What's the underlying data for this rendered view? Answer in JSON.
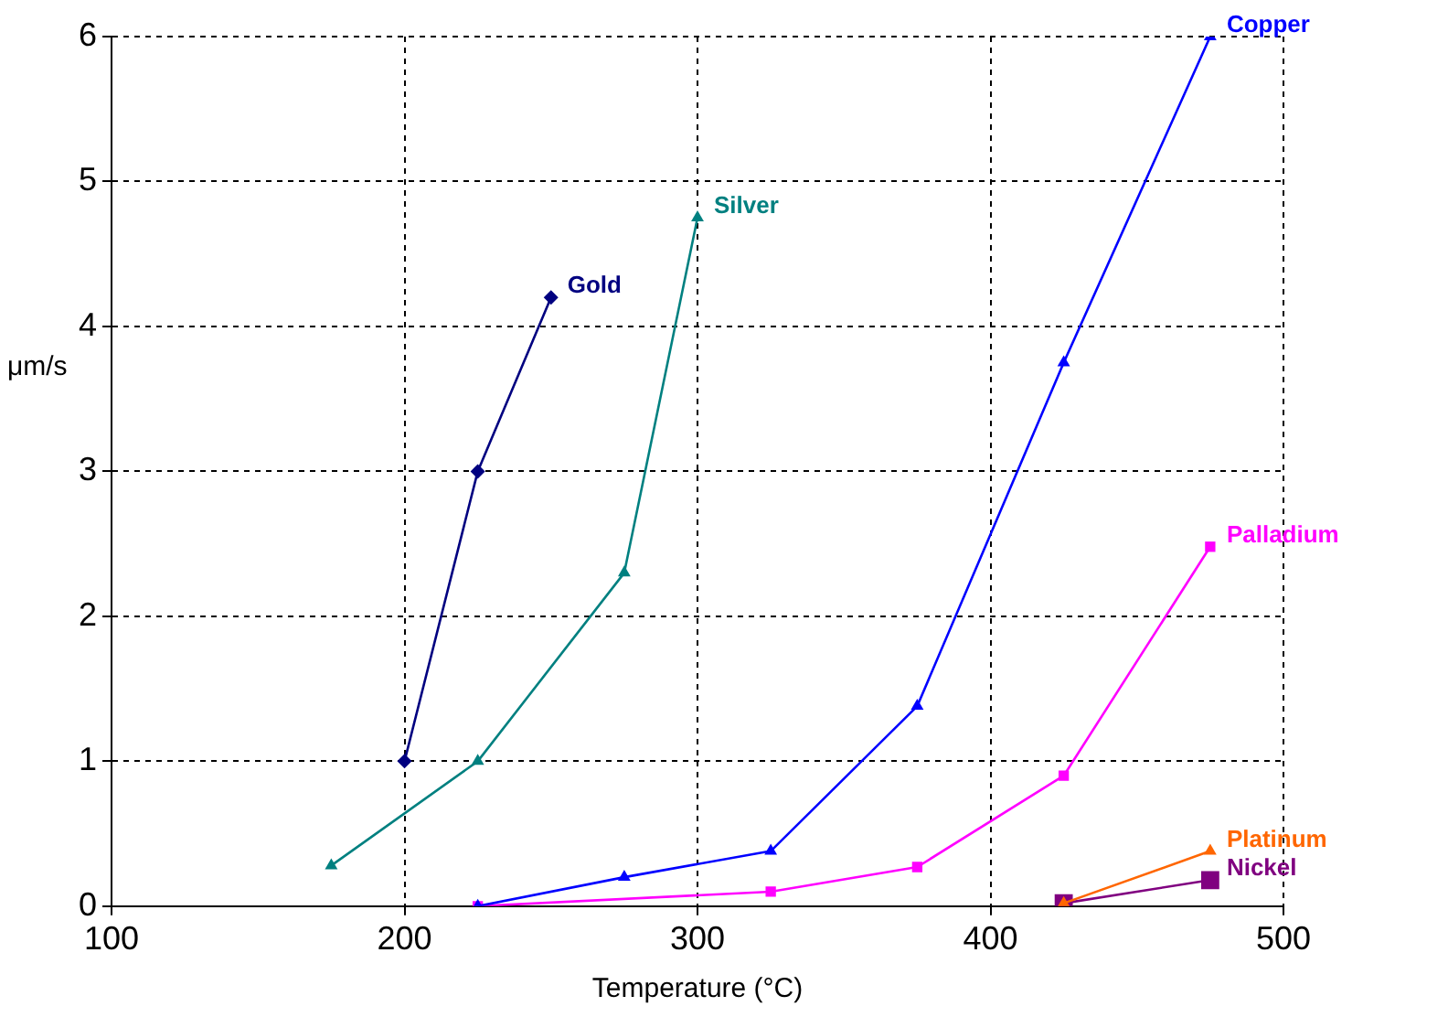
{
  "chart_data": {
    "type": "line",
    "xlabel": "Temperature (°C)",
    "ylabel": "μm/s",
    "xlim": [
      100,
      500
    ],
    "xticks": [
      100,
      200,
      300,
      400,
      500
    ],
    "ylim": [
      0,
      6
    ],
    "yticks": [
      0,
      1,
      2,
      3,
      4,
      5,
      6
    ],
    "grid": true,
    "legend": false,
    "series": [
      {
        "name": "Gold",
        "color": "#000080",
        "marker": "diamond",
        "x": [
          200,
          225,
          250
        ],
        "values": [
          1.0,
          3.0,
          4.2
        ]
      },
      {
        "name": "Silver",
        "color": "#008080",
        "marker": "triangle",
        "x": [
          175,
          225,
          275,
          300
        ],
        "values": [
          0.28,
          1.0,
          2.3,
          4.75
        ]
      },
      {
        "name": "Copper",
        "color": "#0000ff",
        "marker": "triangle",
        "x": [
          225,
          275,
          325,
          375,
          425,
          475
        ],
        "values": [
          0.0,
          0.2,
          0.38,
          1.38,
          3.75,
          6.0
        ]
      },
      {
        "name": "Palladium",
        "color": "#ff00ff",
        "marker": "square",
        "x": [
          225,
          325,
          375,
          425,
          475
        ],
        "values": [
          0.0,
          0.1,
          0.27,
          0.9,
          2.48
        ]
      },
      {
        "name": "Platinum",
        "color": "#ff6600",
        "marker": "triangle",
        "x": [
          425,
          475
        ],
        "values": [
          0.02,
          0.38
        ]
      },
      {
        "name": "Nickel",
        "color": "#800080",
        "marker": "square",
        "x": [
          425,
          475
        ],
        "values": [
          0.02,
          0.18
        ]
      }
    ]
  }
}
